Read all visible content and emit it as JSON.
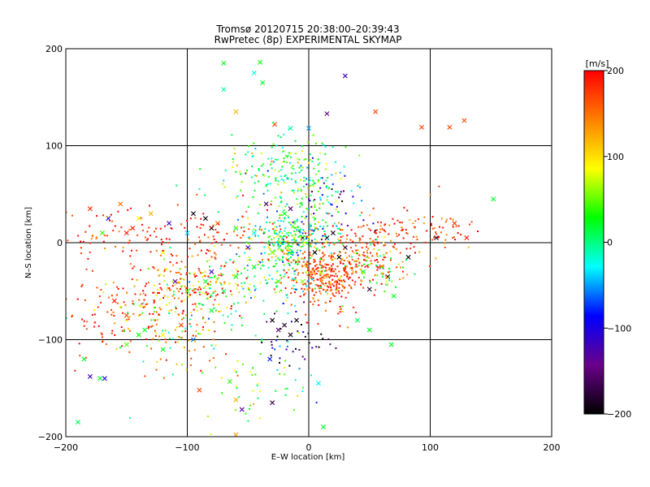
{
  "chart_data": {
    "type": "scatter",
    "title": "Tromsø 20120715 20:38:00–20:39:43",
    "subtitle": "RwPretec (8p) EXPERIMENTAL SKYMAP",
    "xlabel": "E–W location [km]",
    "ylabel": "N–S location [km]",
    "xlim": [
      -200,
      200
    ],
    "ylim": [
      -200,
      200
    ],
    "xticks": [
      "−200",
      "−100",
      "0",
      "100",
      "200"
    ],
    "yticks": [
      "−200",
      "−100",
      "0",
      "100",
      "200"
    ],
    "grid": true,
    "colorbar": {
      "label": "[m/s]",
      "range": [
        -200,
        200
      ],
      "ticks": [
        "200",
        "100",
        "0",
        "−100",
        "−200"
      ],
      "colors": [
        "#000000",
        "#6a008a",
        "#0000ff",
        "#00ffff",
        "#00ff00",
        "#ffff00",
        "#ff7f00",
        "#ff0000"
      ]
    },
    "series": [
      {
        "marker": "cross",
        "points": [
          [
            -190,
            -185,
            10
          ],
          [
            -180,
            -138,
            -120
          ],
          [
            -172,
            -140,
            20
          ],
          [
            -168,
            -140,
            -100
          ],
          [
            -185,
            -120,
            20
          ],
          [
            -150,
            -105,
            50
          ],
          [
            -140,
            -95,
            30
          ],
          [
            -120,
            -110,
            20
          ],
          [
            -90,
            -152,
            170
          ],
          [
            -65,
            -143,
            40
          ],
          [
            -60,
            -162,
            120
          ],
          [
            -55,
            -172,
            -130
          ],
          [
            -30,
            -165,
            -170
          ],
          [
            -32,
            -120,
            -80
          ],
          [
            -25,
            -90,
            -150
          ],
          [
            -15,
            -95,
            -190
          ],
          [
            8,
            -145,
            -30
          ],
          [
            12,
            -190,
            20
          ],
          [
            -60,
            -198,
            130
          ],
          [
            -70,
            185,
            20
          ],
          [
            -40,
            186,
            30
          ],
          [
            -45,
            175,
            -20
          ],
          [
            -38,
            165,
            20
          ],
          [
            -70,
            158,
            -10
          ],
          [
            -60,
            135,
            120
          ],
          [
            -28,
            122,
            170
          ],
          [
            -15,
            118,
            -10
          ],
          [
            0,
            118,
            -50
          ],
          [
            15,
            133,
            -140
          ],
          [
            30,
            172,
            -120
          ],
          [
            55,
            135,
            170
          ],
          [
            93,
            119,
            170
          ],
          [
            116,
            119,
            170
          ],
          [
            128,
            126,
            170
          ],
          [
            152,
            45,
            20
          ],
          [
            130,
            5,
            190
          ],
          [
            120,
            20,
            180
          ],
          [
            105,
            5,
            -180
          ],
          [
            82,
            -15,
            -200
          ],
          [
            50,
            -48,
            -180
          ],
          [
            45,
            -30,
            20
          ],
          [
            60,
            -25,
            -150
          ],
          [
            65,
            -35,
            -170
          ],
          [
            70,
            -55,
            20
          ],
          [
            -165,
            25,
            -100
          ],
          [
            -180,
            35,
            180
          ],
          [
            -155,
            40,
            150
          ],
          [
            -150,
            10,
            190
          ],
          [
            -145,
            15,
            190
          ],
          [
            -170,
            10,
            40
          ],
          [
            -140,
            25,
            90
          ],
          [
            -130,
            30,
            120
          ],
          [
            -115,
            20,
            -120
          ],
          [
            -100,
            10,
            -40
          ],
          [
            -95,
            30,
            -190
          ],
          [
            -85,
            25,
            -200
          ],
          [
            -80,
            15,
            -200
          ],
          [
            -75,
            20,
            160
          ],
          [
            -60,
            15,
            20
          ],
          [
            -45,
            10,
            -20
          ],
          [
            -35,
            40,
            -170
          ],
          [
            -20,
            30,
            20
          ],
          [
            -15,
            35,
            -160
          ],
          [
            -5,
            5,
            -190
          ],
          [
            5,
            -10,
            -200
          ],
          [
            15,
            5,
            -200
          ],
          [
            25,
            -15,
            -200
          ],
          [
            30,
            -5,
            -180
          ],
          [
            20,
            10,
            -190
          ],
          [
            -10,
            -20,
            20
          ],
          [
            -30,
            -10,
            50
          ],
          [
            -45,
            -25,
            30
          ],
          [
            -50,
            -5,
            -120
          ],
          [
            -25,
            -40,
            40
          ],
          [
            -5,
            -40,
            60
          ],
          [
            10,
            -30,
            60
          ],
          [
            -160,
            -60,
            190
          ],
          [
            -150,
            -75,
            170
          ],
          [
            -135,
            -90,
            20
          ],
          [
            -120,
            -95,
            90
          ],
          [
            -105,
            -85,
            170
          ],
          [
            -95,
            -100,
            -60
          ],
          [
            -80,
            -70,
            20
          ],
          [
            -70,
            -50,
            10
          ],
          [
            -110,
            -40,
            -140
          ],
          [
            -100,
            -50,
            30
          ],
          [
            -85,
            -40,
            20
          ],
          [
            -60,
            -35,
            30
          ],
          [
            -30,
            -80,
            -200
          ],
          [
            -20,
            -85,
            -180
          ],
          [
            -10,
            -80,
            -190
          ],
          [
            40,
            -80,
            10
          ],
          [
            50,
            -90,
            20
          ],
          [
            68,
            -105,
            20
          ],
          [
            -80,
            -30,
            -120
          ],
          [
            -120,
            -10,
            90
          ]
        ]
      },
      {
        "marker": "dot",
        "clusters": [
          [
            -100,
            -50,
            25,
            20,
            220,
            150,
            60
          ],
          [
            -150,
            -75,
            22,
            18,
            60,
            170,
            40
          ],
          [
            -75,
            -45,
            20,
            18,
            60,
            30,
            40
          ],
          [
            -130,
            -80,
            30,
            25,
            50,
            30,
            40
          ],
          [
            -20,
            0,
            15,
            12,
            180,
            20,
            60
          ],
          [
            -5,
            10,
            18,
            15,
            120,
            0,
            50
          ],
          [
            -15,
            55,
            25,
            25,
            110,
            30,
            50
          ],
          [
            -40,
            75,
            20,
            15,
            50,
            20,
            40
          ],
          [
            -80,
            5,
            30,
            15,
            90,
            180,
            30
          ],
          [
            -160,
            10,
            25,
            12,
            60,
            180,
            30
          ],
          [
            10,
            -35,
            15,
            12,
            200,
            170,
            30
          ],
          [
            30,
            -20,
            20,
            15,
            120,
            170,
            30
          ],
          [
            50,
            -15,
            20,
            15,
            90,
            170,
            40
          ],
          [
            60,
            -25,
            15,
            10,
            40,
            20,
            30
          ],
          [
            70,
            10,
            25,
            12,
            70,
            170,
            30
          ],
          [
            100,
            15,
            20,
            12,
            35,
            170,
            30
          ],
          [
            -20,
            -40,
            20,
            15,
            80,
            10,
            50
          ],
          [
            -10,
            -100,
            15,
            15,
            40,
            -140,
            60
          ],
          [
            -30,
            -135,
            15,
            25,
            30,
            20,
            40
          ],
          [
            -60,
            -155,
            15,
            20,
            25,
            60,
            40
          ],
          [
            -180,
            -60,
            15,
            30,
            40,
            180,
            20
          ],
          [
            -100,
            -110,
            20,
            15,
            30,
            150,
            30
          ],
          [
            20,
            40,
            15,
            20,
            40,
            -120,
            60
          ],
          [
            0,
            60,
            15,
            15,
            60,
            20,
            40
          ],
          [
            -10,
            90,
            20,
            15,
            30,
            20,
            40
          ],
          [
            20,
            -60,
            15,
            15,
            40,
            170,
            30
          ]
        ]
      }
    ]
  }
}
